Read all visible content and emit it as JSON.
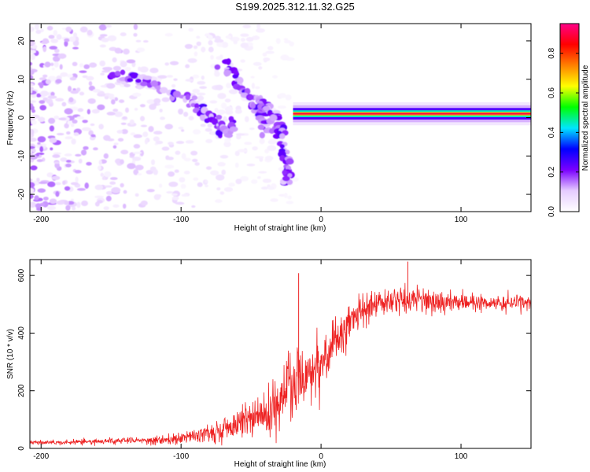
{
  "figure": {
    "title": "S199.2025.312.11.32.G25"
  },
  "chart_data": [
    {
      "type": "heatmap",
      "title": "",
      "xlabel": "Height of straight line (km)",
      "ylabel": "Frequency (Hz)",
      "xlim": [
        -208,
        150
      ],
      "ylim": [
        -24.5,
        24.5
      ],
      "xticks": [
        -200,
        -100,
        0,
        100
      ],
      "yticks": [
        20,
        10,
        0,
        -10,
        -20
      ],
      "colorbar": {
        "label": "Normalized spectral amplitude",
        "range": [
          0.0,
          0.95
        ],
        "ticks": [
          "0.0",
          "0.2",
          "0.4",
          "0.6",
          "0.8"
        ],
        "tick_values": [
          0.0,
          0.2,
          0.4,
          0.6,
          0.8
        ],
        "colors": [
          "#ffffff",
          "#e6ccff",
          "#7a00ff",
          "#0000ff",
          "#00e5ff",
          "#00ff00",
          "#ffff00",
          "#ff8000",
          "#ff0000",
          "#ff0088"
        ]
      },
      "features": [
        {
          "name": "steady tone",
          "x_range": [
            -20,
            150
          ],
          "frequency_hz": 1.0,
          "amplitude": 0.9
        },
        {
          "name": "main descending branch",
          "points": [
            [
              -150,
              11
            ],
            [
              -130,
              10
            ],
            [
              -110,
              7
            ],
            [
              -90,
              3
            ],
            [
              -80,
              0
            ],
            [
              -70,
              -3
            ],
            [
              -60,
              -3
            ]
          ]
        },
        {
          "name": "second branch",
          "points": [
            [
              -70,
              14
            ],
            [
              -60,
              10
            ],
            [
              -50,
              5
            ],
            [
              -42,
              0
            ],
            [
              -38,
              -4
            ]
          ]
        },
        {
          "name": "third branch",
          "points": [
            [
              -45,
              5
            ],
            [
              -40,
              2
            ],
            [
              -33,
              0
            ],
            [
              -28,
              -5
            ],
            [
              -25,
              -12
            ],
            [
              -24,
              -17
            ]
          ]
        }
      ]
    },
    {
      "type": "line",
      "title": "",
      "xlabel": "Height of straight line (km)",
      "ylabel": "SNR (10 * v/v)",
      "xlim": [
        -208,
        150
      ],
      "ylim": [
        0,
        655
      ],
      "xticks": [
        -200,
        -100,
        0,
        100
      ],
      "yticks": [
        0,
        200,
        400,
        600
      ],
      "color": "#ee2222",
      "series": [
        {
          "name": "SNR",
          "x": [
            -208,
            -180,
            -150,
            -120,
            -100,
            -80,
            -60,
            -40,
            -30,
            -20,
            -15,
            -10,
            0,
            10,
            20,
            30,
            40,
            50,
            60,
            70,
            80,
            100,
            120,
            150
          ],
          "y": [
            20,
            22,
            25,
            28,
            35,
            55,
            80,
            130,
            170,
            220,
            250,
            270,
            300,
            360,
            430,
            480,
            500,
            510,
            515,
            515,
            510,
            505,
            505,
            505
          ],
          "noise": [
            8,
            8,
            10,
            12,
            18,
            30,
            45,
            90,
            120,
            150,
            120,
            100,
            80,
            70,
            60,
            55,
            55,
            55,
            50,
            45,
            35,
            28,
            25,
            25
          ]
        }
      ],
      "annotations": [
        {
          "x": -16,
          "y": 608,
          "text": ""
        },
        {
          "x": 62,
          "y": 648,
          "text": ""
        }
      ]
    }
  ]
}
